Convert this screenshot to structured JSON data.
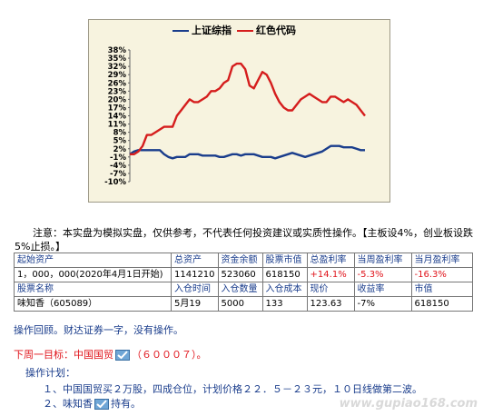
{
  "chart_data": {
    "type": "line",
    "series": [
      {
        "name": "上证综指",
        "color": "#1a3d8c",
        "values": [
          0,
          1,
          1.5,
          1.5,
          1.5,
          1.5,
          1.5,
          1.5,
          0,
          -1,
          -1.5,
          -1,
          -1,
          -1,
          0,
          0,
          0,
          -0.5,
          -0.5,
          -0.5,
          -0.5,
          -1,
          -1,
          -0.5,
          0,
          0,
          -0.5,
          0,
          0,
          0,
          -0.5,
          -1,
          -1,
          -1,
          -1.5,
          -1,
          -0.5,
          0,
          0.5,
          0,
          -0.5,
          -1,
          -0.5,
          0,
          0.5,
          1,
          2,
          3,
          3,
          3,
          2.5,
          2.5,
          2.5,
          2,
          1.5,
          1.5
        ]
      },
      {
        "name": "红色代码",
        "color": "#d51d1d",
        "values": [
          0,
          0,
          1,
          3,
          7,
          7,
          8,
          9,
          10,
          10,
          10,
          14,
          16,
          18,
          20,
          19,
          19,
          20,
          21,
          23,
          23,
          24,
          26,
          27,
          32,
          33,
          33,
          31,
          25,
          24,
          27,
          30,
          29,
          26,
          22,
          19,
          17,
          16,
          16,
          18,
          20,
          21,
          22,
          21,
          20,
          19,
          19,
          21,
          21,
          20,
          19,
          20,
          19,
          18,
          16,
          14
        ]
      }
    ],
    "yticks": [
      "38%",
      "35%",
      "32%",
      "29%",
      "26%",
      "23%",
      "20%",
      "17%",
      "14%",
      "11%",
      "8%",
      "5%",
      "2%",
      "-1%",
      "-4%",
      "-7%",
      "-10%"
    ],
    "ylim": [
      -10,
      38
    ],
    "grid": false,
    "legend_position": "top-center"
  },
  "note": "注意：本实盘为模拟实盘，仅供参考，不代表任何投资建议或实质性操作。【主板设4%，创业板设跌5%止损。】",
  "table": {
    "row1": [
      "起始资产",
      "总资产",
      "资金余额",
      "股票市值",
      "总盈利率",
      "当周盈利率",
      "当月盈利率"
    ],
    "row2": [
      "1，000，000(2020年4月1日开始)",
      "1141210",
      "523060",
      "618150",
      "+14.1%",
      "-5.3%",
      "-16.3%"
    ],
    "row3": [
      "股票名称",
      "入仓时间",
      "入仓数量",
      "入仓成本",
      "现价",
      "收益率",
      "市值"
    ],
    "row4": [
      "味知香（605089）",
      "5月19",
      "5000",
      "133",
      "123.63",
      "-7%",
      "618150"
    ]
  },
  "ops": "操作回顾。财达证券一字，没有操作。",
  "target_a": "下周一目标：中国国贸",
  "target_b": "（６０００７）。",
  "plan_title": "操作计划：",
  "plan1": "１、中国国贸买２万股，四成仓位，计划价格２２．５－２３元，１０日线做第二波。",
  "plan2_a": "２、味知香",
  "plan2_b": "持有。",
  "watermark": "www.gupiao168.com",
  "colors": {
    "blue": "#1a3d8c",
    "red": "#e0141b",
    "chart_bg": "#f7f3df"
  }
}
